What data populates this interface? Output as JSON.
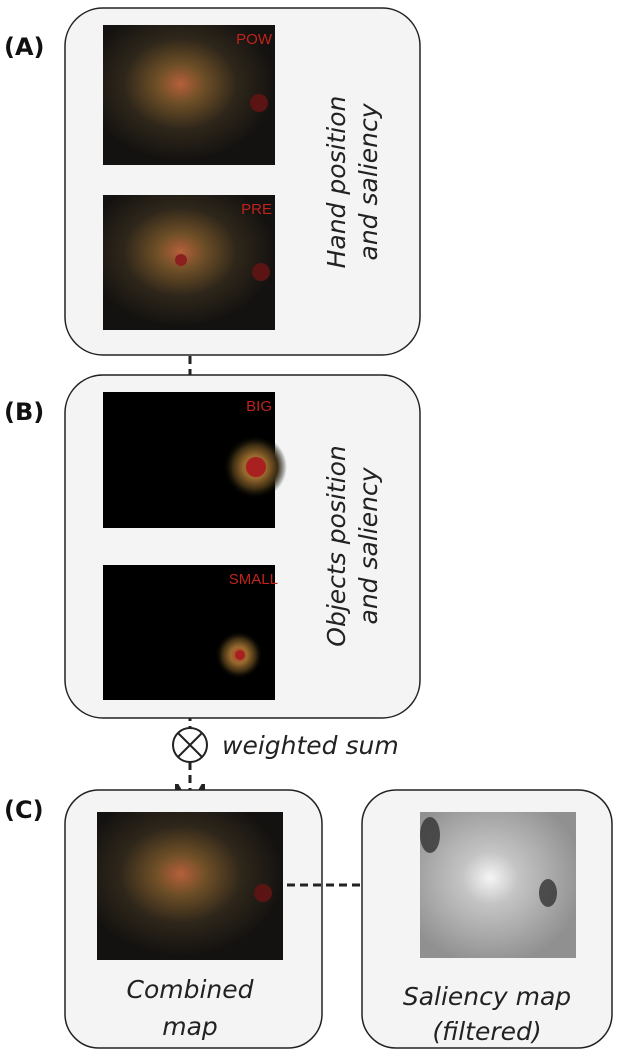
{
  "panels": [
    {
      "label": "(A)",
      "caption": [
        "Hand position",
        "and saliency"
      ],
      "images": [
        "POW",
        "PRE"
      ]
    },
    {
      "label": "(B)",
      "caption": [
        "Objects position",
        "and saliency"
      ],
      "images": [
        "BIG",
        "SMALL"
      ]
    },
    {
      "label": "(C)"
    }
  ],
  "operator": "weighted sum",
  "outputs": [
    {
      "caption": [
        "Combined",
        "map"
      ]
    },
    {
      "caption": [
        "Saliency map",
        "(filtered)"
      ]
    }
  ]
}
